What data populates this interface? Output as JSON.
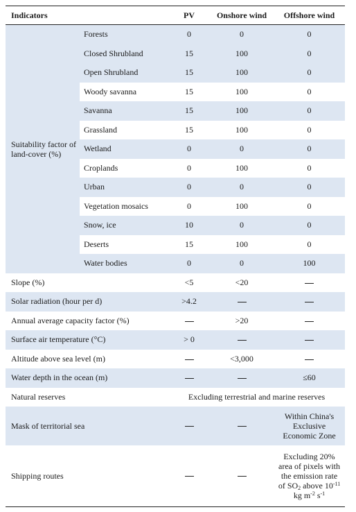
{
  "headers": {
    "indicators": "Indicators",
    "pv": "PV",
    "onshore": "Onshore wind",
    "offshore": "Offshore wind"
  },
  "landcover": {
    "group_label": "Suitability factor of land-cover (%)",
    "rows": [
      {
        "name": "Forests",
        "pv": "0",
        "on": "0",
        "off": "0"
      },
      {
        "name": "Closed Shrubland",
        "pv": "15",
        "on": "100",
        "off": "0"
      },
      {
        "name": "Open Shrubland",
        "pv": "15",
        "on": "100",
        "off": "0"
      },
      {
        "name": "Woody savanna",
        "pv": "15",
        "on": "100",
        "off": "0"
      },
      {
        "name": "Savanna",
        "pv": "15",
        "on": "100",
        "off": "0"
      },
      {
        "name": "Grassland",
        "pv": "15",
        "on": "100",
        "off": "0"
      },
      {
        "name": "Wetland",
        "pv": "0",
        "on": "0",
        "off": "0"
      },
      {
        "name": "Croplands",
        "pv": "0",
        "on": "100",
        "off": "0"
      },
      {
        "name": "Urban",
        "pv": "0",
        "on": "0",
        "off": "0"
      },
      {
        "name": "Vegetation mosaics",
        "pv": "0",
        "on": "100",
        "off": "0"
      },
      {
        "name": "Snow, ice",
        "pv": "10",
        "on": "0",
        "off": "0"
      },
      {
        "name": "Deserts",
        "pv": "15",
        "on": "100",
        "off": "0"
      },
      {
        "name": "Water bodies",
        "pv": "0",
        "on": "0",
        "off": "100"
      }
    ]
  },
  "slope": {
    "label": "Slope (%)",
    "pv": "<5",
    "on": "<20"
  },
  "solar": {
    "label": "Solar radiation (hour per d)",
    "pv": ">4.2"
  },
  "capacity": {
    "label": "Annual average capacity factor (%)",
    "on": ">20"
  },
  "temp": {
    "label": "Surface air temperature (°C)",
    "pv": "> 0"
  },
  "altitude": {
    "label": "Altitude above sea level (m)",
    "on": "<3,000"
  },
  "depth": {
    "label": "Water depth in the ocean (m)",
    "off": "≤60"
  },
  "reserves": {
    "label": "Natural reserves",
    "value": "Excluding terrestrial and marine reserves"
  },
  "mask": {
    "label": "Mask of territorial sea",
    "off": "Within China's Exclusive Economic Zone"
  },
  "shipping": {
    "label": "Shipping routes",
    "off_text": "Excluding 20% area of pixels with the emission rate of SO",
    "off_sub": "2",
    "off_above": " above ",
    "off_base": "10",
    "off_exp1": "-11",
    "off_unit1": " kg m",
    "off_exp2": "-2",
    "off_unit2": " s",
    "off_exp3": "-1"
  }
}
